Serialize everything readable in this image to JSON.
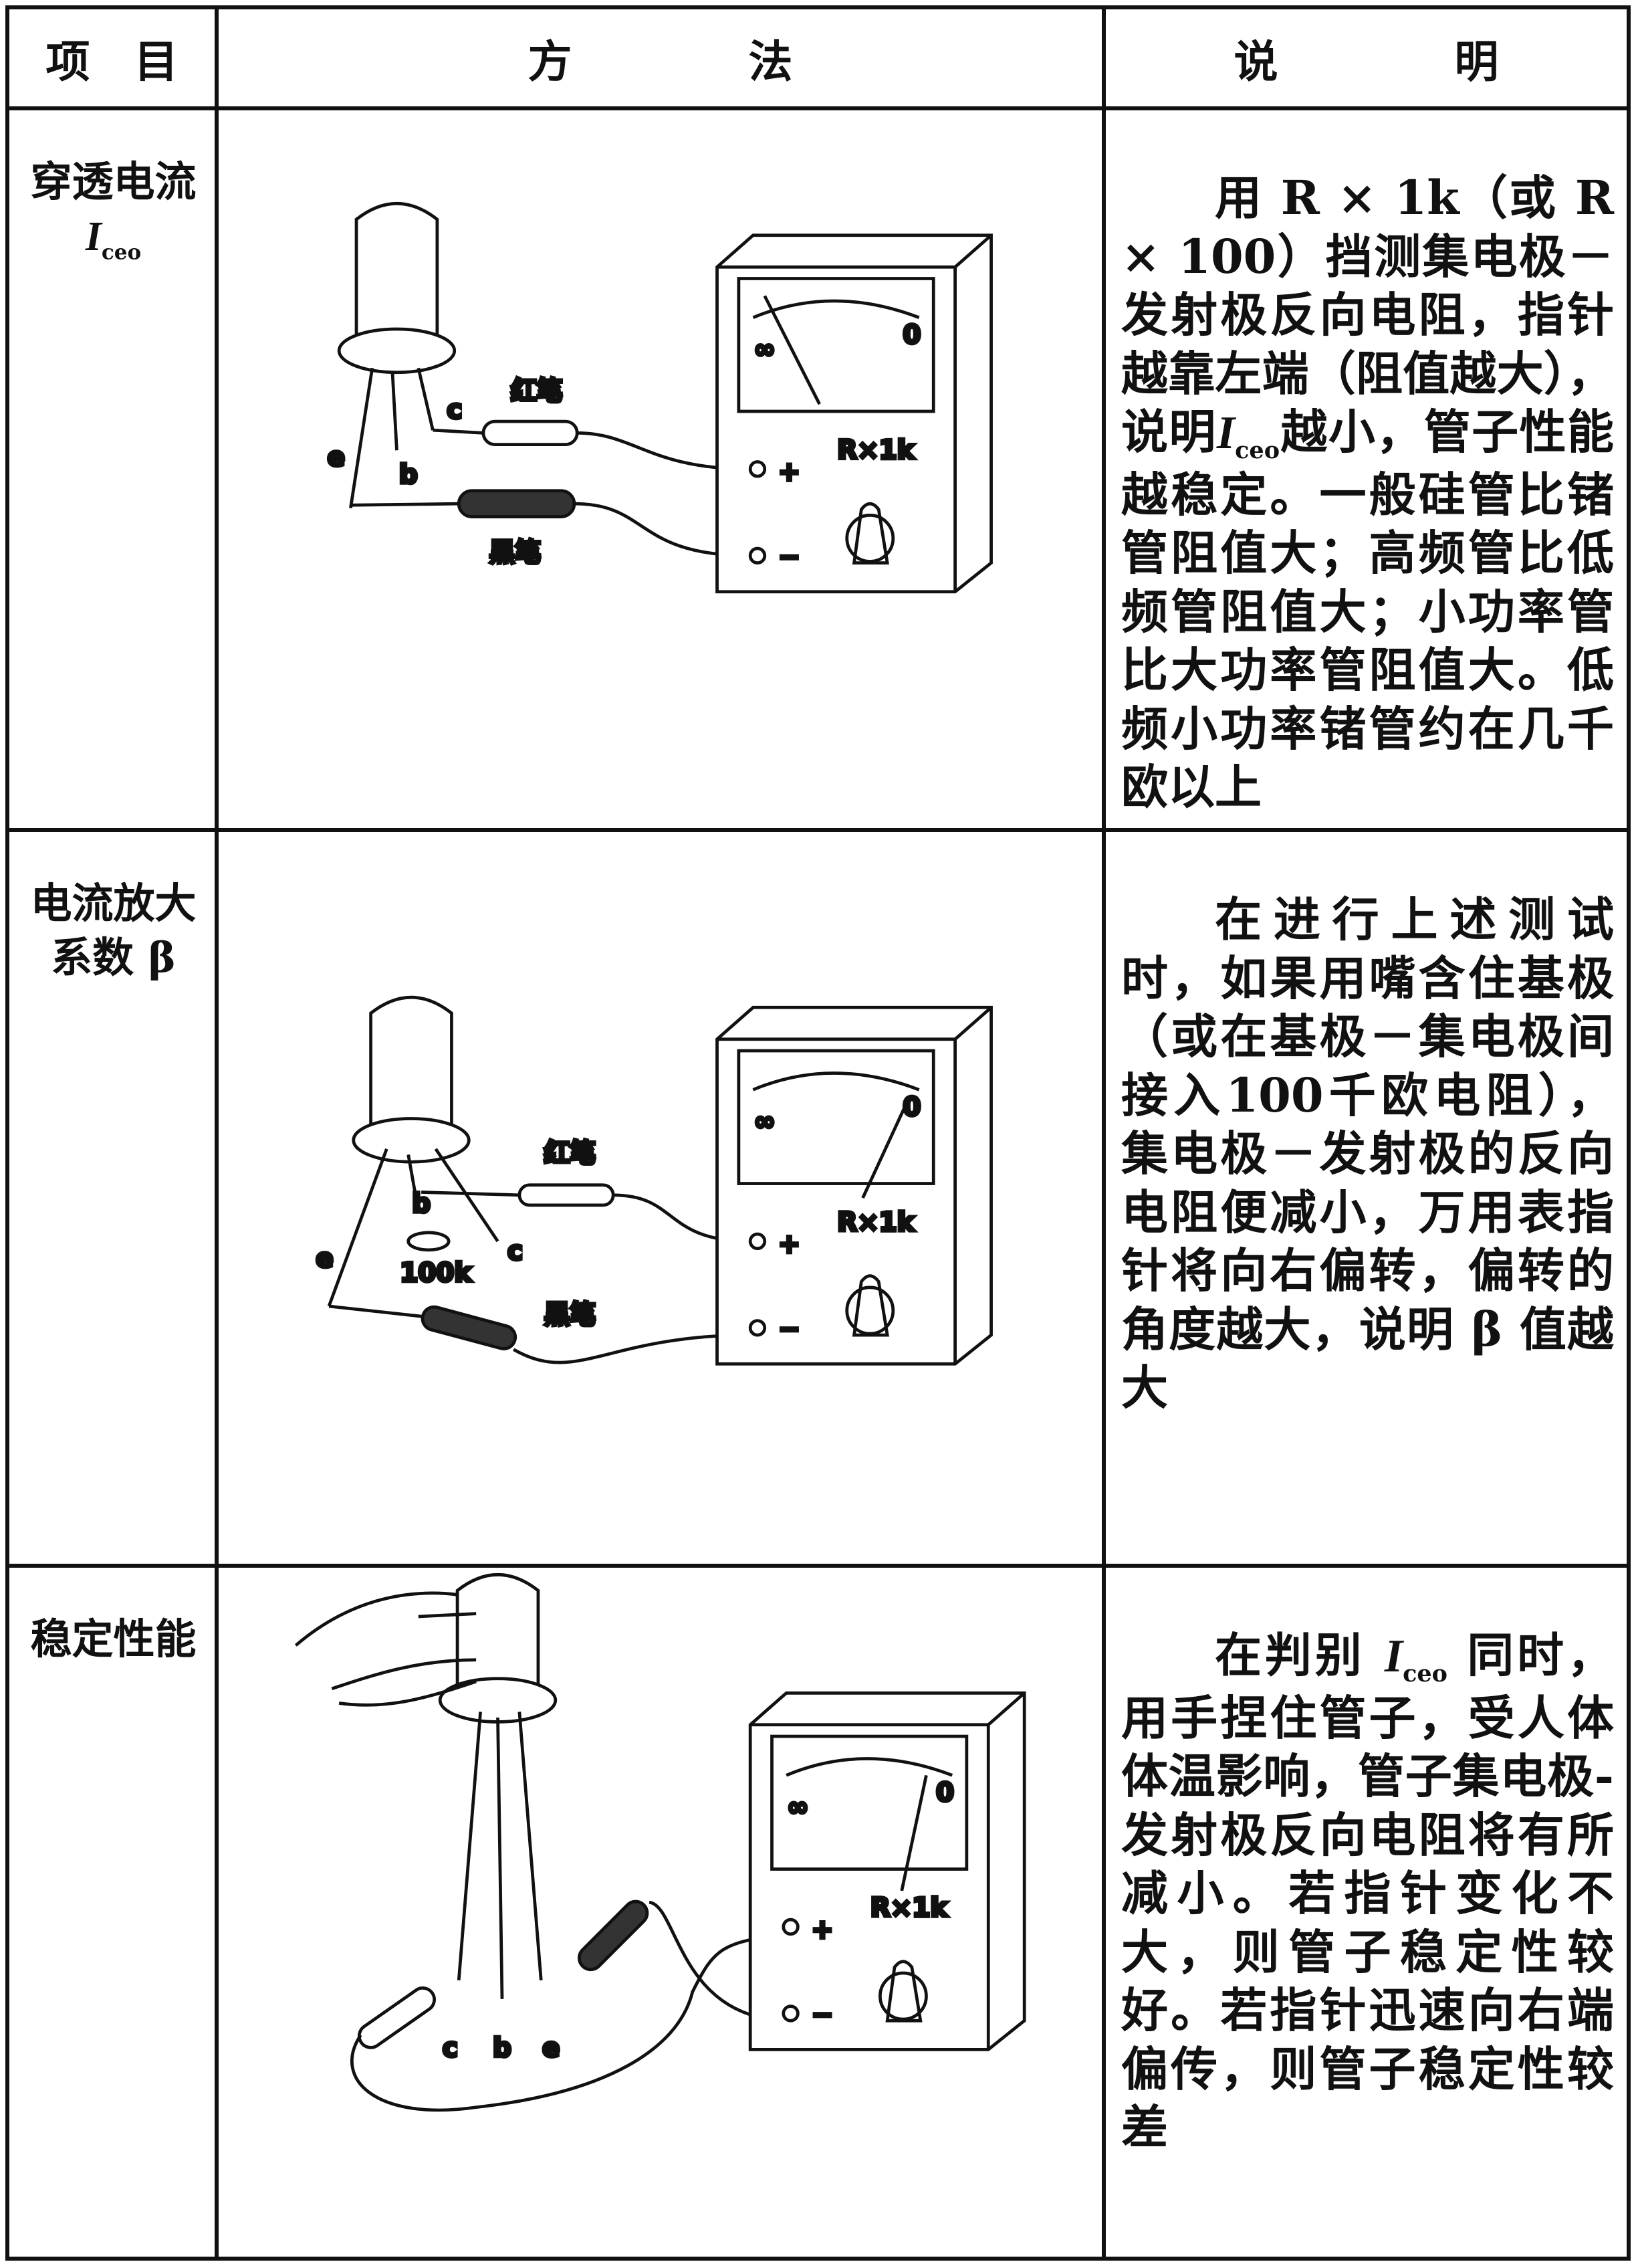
{
  "header": {
    "item": "项　目",
    "method": "方　　　　法",
    "note": "说　　　　明"
  },
  "rows": [
    {
      "item": "穿透电流",
      "item_symbol": {
        "main": "I",
        "sub": "ceo"
      },
      "figure": {
        "lead_c": "c",
        "red_probe": "红笔",
        "lead_e": "e",
        "lead_b": "b",
        "black_probe": "黑笔",
        "range": "R×1k",
        "scale_zero": "0",
        "scale_infinity": "∞",
        "plus": "+",
        "minus": "−"
      },
      "note": [
        {
          "text": "用 R × 1k（或 R × 100）挡测集电极－发射极反向电阻，指针越靠左端（阻值越大），说明"
        },
        {
          "symbol": "I",
          "sub": "ceo"
        },
        {
          "text": "越小，管子性能越稳定。一般硅管比锗管阻值大；高频管比低频管阻值大；小功率管比大功率管阻值大。低频小功率锗管约在几千欧以上"
        }
      ]
    },
    {
      "item": "电流放大系数 β",
      "figure": {
        "red_probe": "红笔",
        "lead_b": "b",
        "lead_c": "c",
        "lead_e": "e",
        "resistor": "100k",
        "black_probe": "黑笔",
        "range": "R×1k",
        "scale_zero": "0",
        "scale_infinity": "∞",
        "plus": "+",
        "minus": "−"
      },
      "note": [
        {
          "text": "在进行上述测试时，如果用嘴含住基极（或在基极－集电极间接入100千欧电阻），集电极－发射极的反向电阻便减小，万用表指针将向右偏转，偏转的角度越大，说明 β 值越大"
        }
      ]
    },
    {
      "item": "稳定性能",
      "figure": {
        "lead_c": "c",
        "lead_b": "b",
        "lead_e": "e",
        "range": "R×1k",
        "scale_zero": "0",
        "scale_infinity": "∞",
        "plus": "+",
        "minus": "−"
      },
      "note": [
        {
          "text": "在判别 "
        },
        {
          "symbol": "I",
          "sub": "ceo"
        },
        {
          "text": " 同时，用手捏住管子，受人体体温影响，管子集电极-发射极反向电阻将有所减小。若指针变化不大，则管子稳定性较好。若指针迅速向右端偏传，则管子稳定性较差"
        }
      ]
    }
  ]
}
